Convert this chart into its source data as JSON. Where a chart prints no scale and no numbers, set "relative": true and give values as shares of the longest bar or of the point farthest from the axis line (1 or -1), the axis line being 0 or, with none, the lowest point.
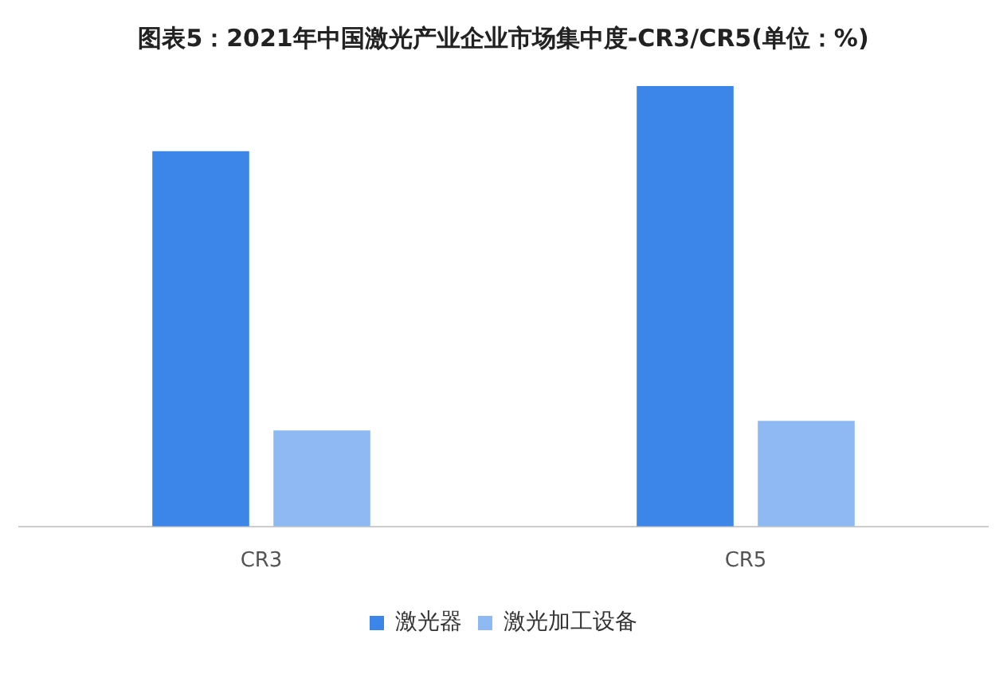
{
  "chart_data": {
    "type": "bar",
    "title": "图表5：2021年中国激光产业企业市场集中度-CR3/CR5(单位：%)",
    "relative": true,
    "categories": [
      "CR3",
      "CR5"
    ],
    "series": [
      {
        "name": "激光器",
        "color": "#3b86e8",
        "values": [
          0.852,
          1
        ]
      },
      {
        "name": "激光加工设备",
        "color": "#8fb9f3",
        "values": [
          0.218,
          0.24
        ]
      }
    ],
    "legend": "bottom",
    "grid": false
  }
}
